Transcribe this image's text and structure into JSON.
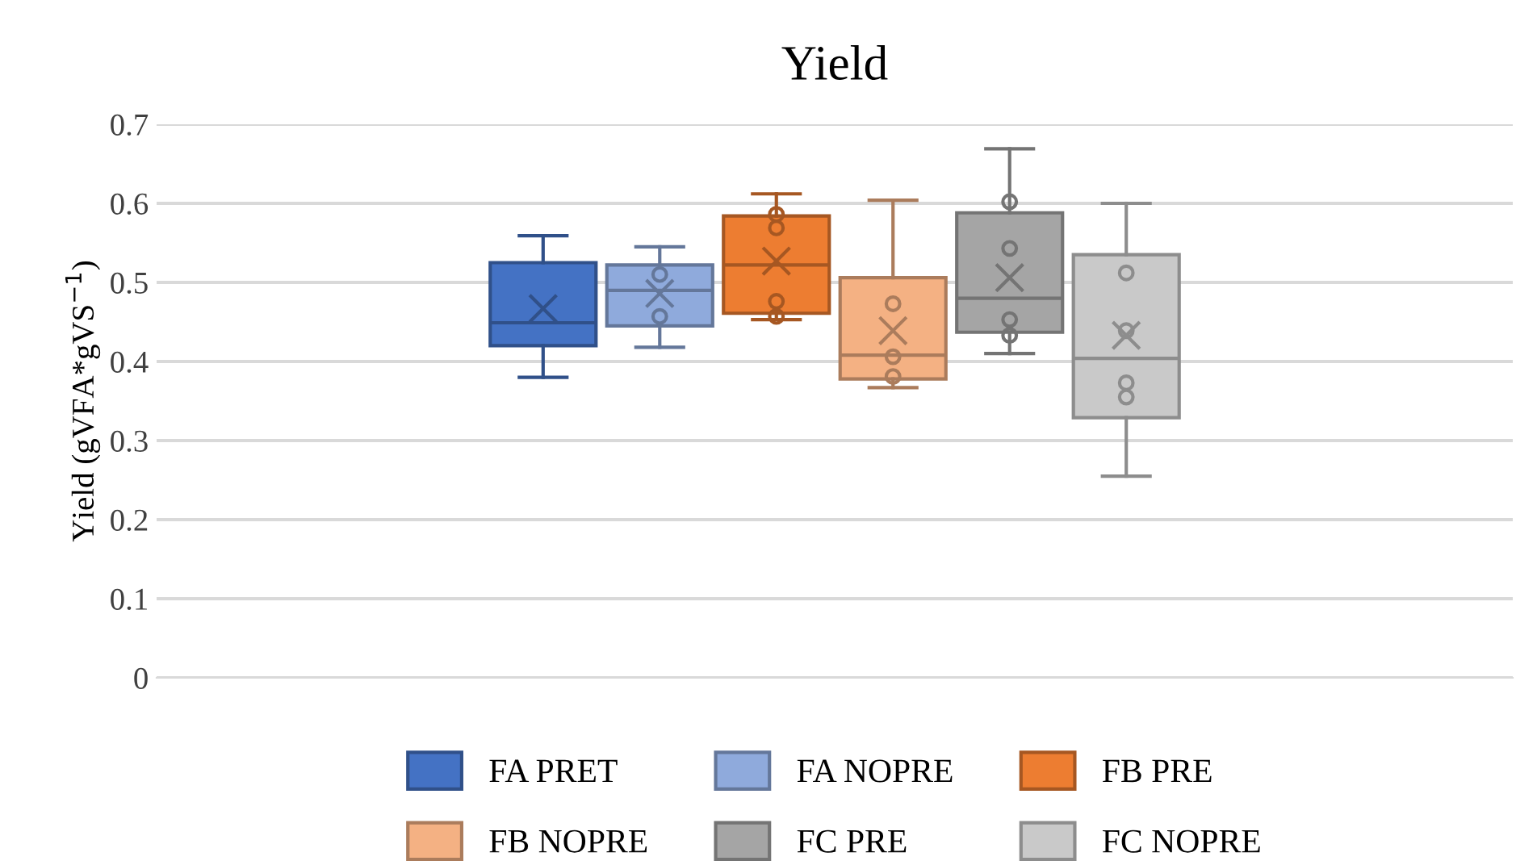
{
  "chart_data": {
    "type": "box",
    "title": "Yield",
    "ylabel": "Yield (gVFA*gVS$^{−1}$)",
    "categories": [
      null
    ],
    "ylim": [
      0,
      0.7
    ],
    "yticks": [
      0,
      0.1,
      0.2,
      0.3,
      0.4,
      0.5,
      0.6,
      0.7
    ],
    "grid": "y",
    "legend": "bottom",
    "series": [
      {
        "name": "FA PRET",
        "color": "#4472c4",
        "boxes": [
          {
            "low": 0.38,
            "q1": 0.42,
            "median": 0.449,
            "q3": 0.525,
            "high": 0.559,
            "mean": 0.467
          }
        ]
      },
      {
        "name": "FA NOPRE",
        "color": "#8faadc",
        "boxes": [
          {
            "low": 0.418,
            "q1": 0.445,
            "median": 0.49,
            "q3": 0.522,
            "high": 0.545,
            "mean": 0.486,
            "outliers": [
              0.51,
              0.457
            ]
          }
        ]
      },
      {
        "name": "FB PRE",
        "color": "#ed7d31",
        "boxes": [
          {
            "low": 0.453,
            "q1": 0.461,
            "median": 0.522,
            "q3": 0.584,
            "high": 0.612,
            "mean": 0.527,
            "outliers": [
              0.586,
              0.569,
              0.476,
              0.457
            ]
          }
        ]
      },
      {
        "name": "FB NOPRE",
        "color": "#f4b183",
        "boxes": [
          {
            "low": 0.367,
            "q1": 0.378,
            "median": 0.408,
            "q3": 0.506,
            "high": 0.604,
            "mean": 0.439,
            "outliers": [
              0.473,
              0.406,
              0.381
            ]
          }
        ]
      },
      {
        "name": "FC PRE",
        "color": "#a5a5a5",
        "boxes": [
          {
            "low": 0.41,
            "q1": 0.437,
            "median": 0.48,
            "q3": 0.588,
            "high": 0.669,
            "mean": 0.506,
            "outliers": [
              0.602,
              0.543,
              0.453,
              0.433
            ]
          }
        ]
      },
      {
        "name": "FC NOPRE",
        "color": "#c9c9c9",
        "boxes": [
          {
            "low": 0.255,
            "q1": 0.329,
            "median": 0.404,
            "q3": 0.535,
            "high": 0.6,
            "mean": 0.433,
            "outliers": [
              0.512,
              0.439,
              0.373,
              0.355
            ]
          }
        ]
      }
    ]
  }
}
